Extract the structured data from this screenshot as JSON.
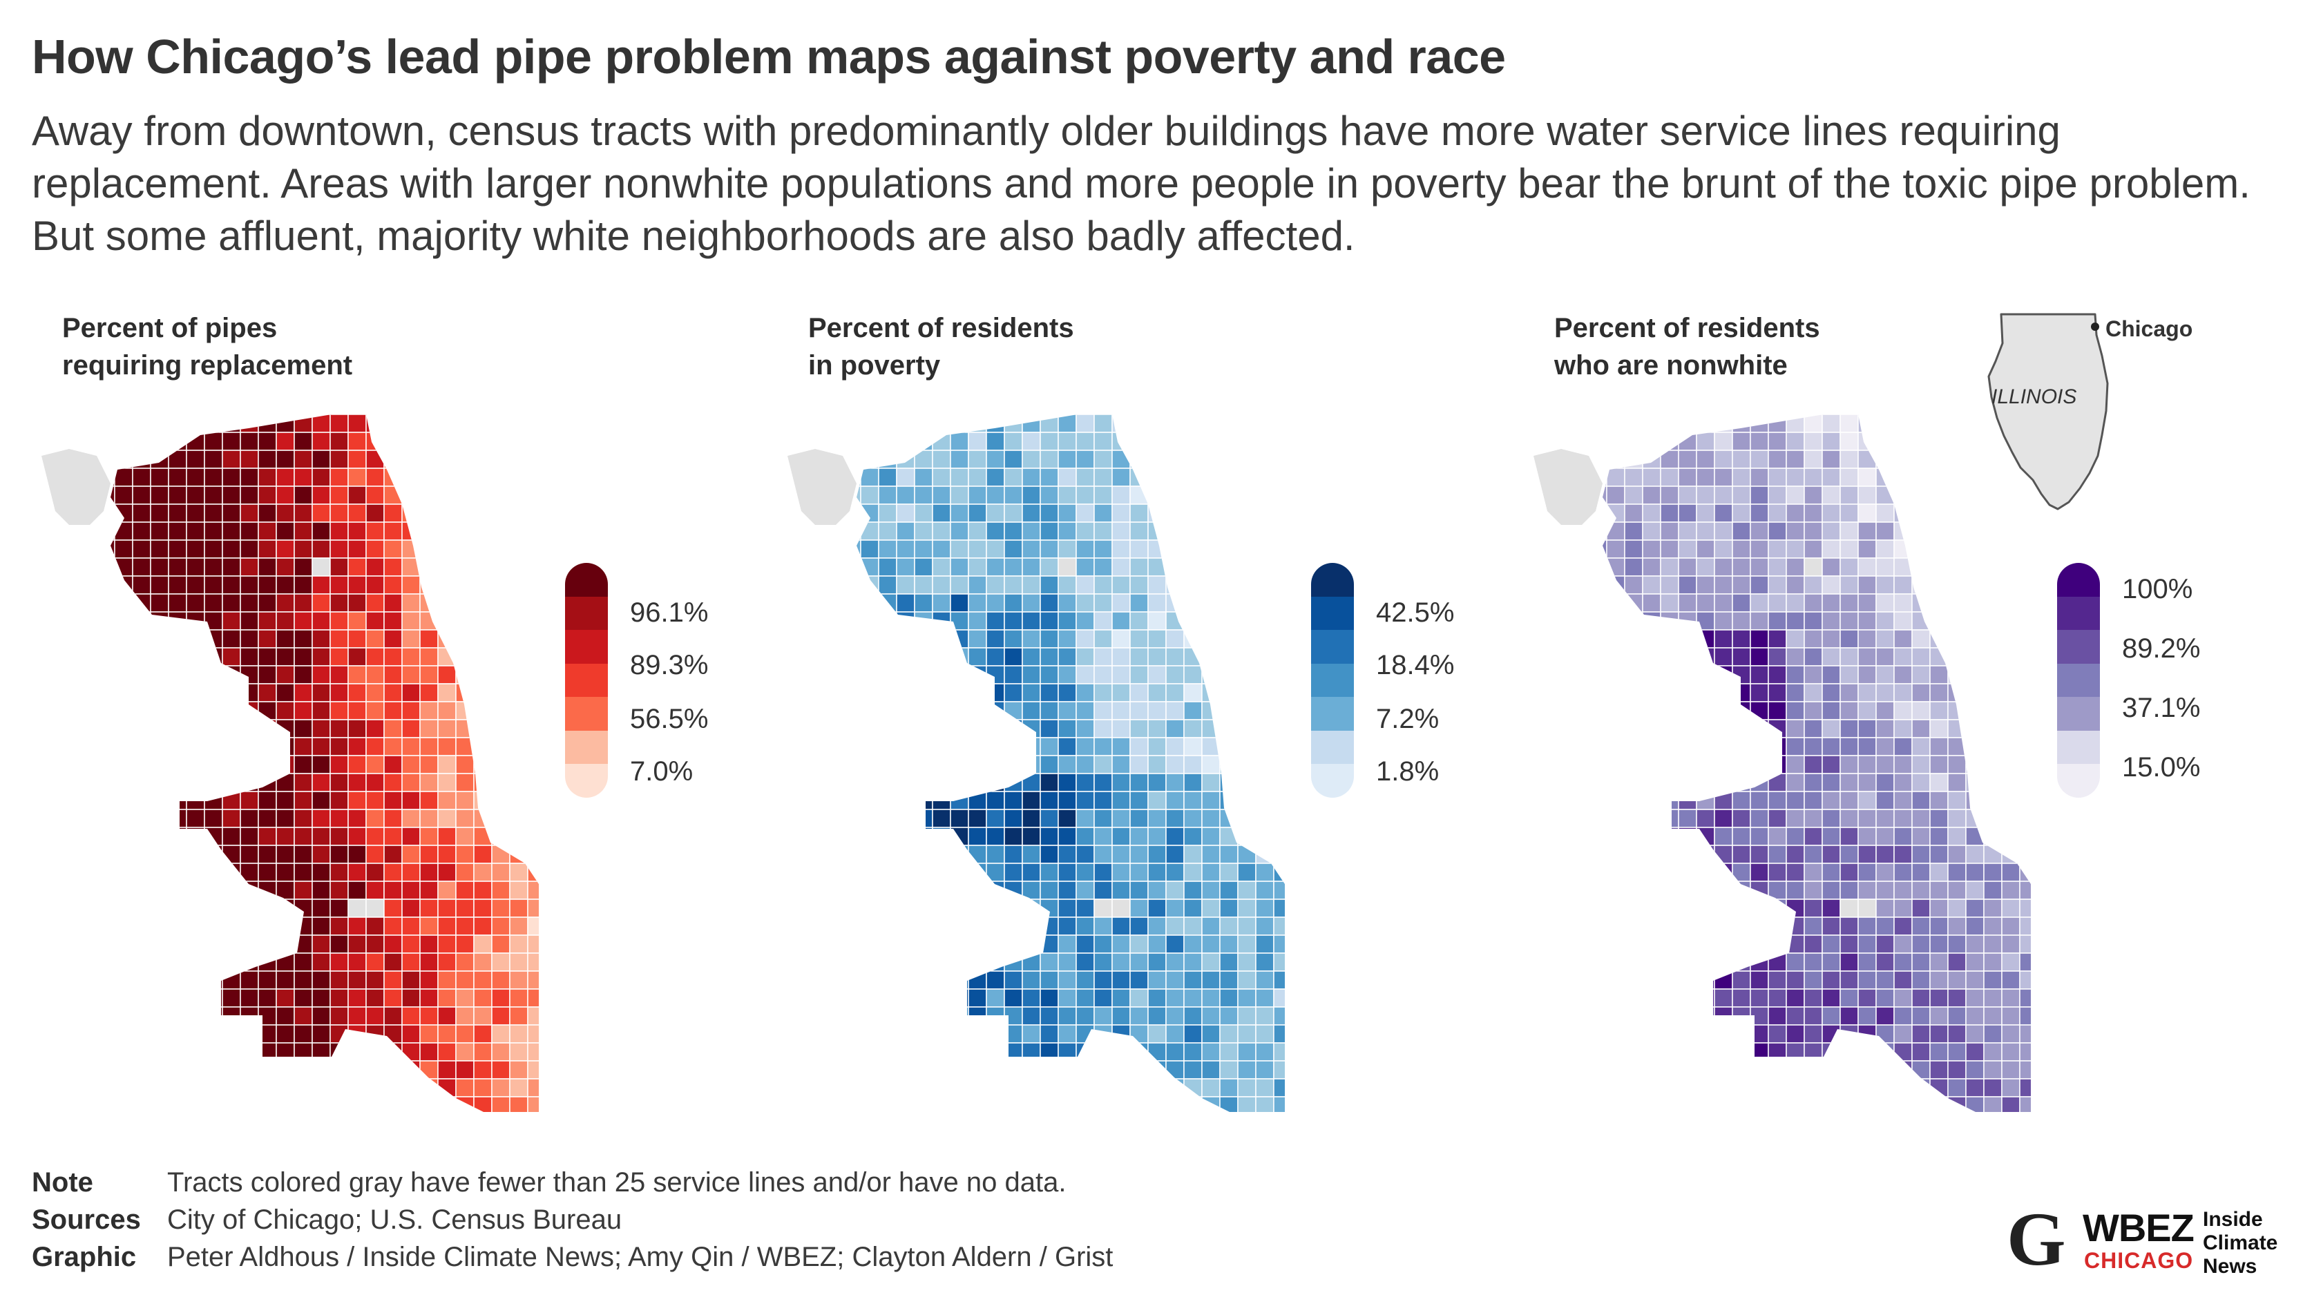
{
  "header": {
    "title": "How Chicago’s lead pipe problem maps against poverty and race",
    "subtitle": "Away from downtown, census tracts with predominantly older buildings have more water service lines requiring replacement. Areas with larger nonwhite populations and more people in poverty bear the brunt of the toxic pipe problem. But some affluent, majority white neighborhoods are also badly affected."
  },
  "panels": [
    {
      "label_line1": "Percent of pipes",
      "label_line2": "requiring replacement",
      "palette": [
        "#67000d",
        "#a50f15",
        "#cb181d",
        "#ef3b2c",
        "#fb6a4a",
        "#fc9272",
        "#fcbba1",
        "#fee0d2",
        "#fff5f0"
      ],
      "ticks": [
        "96.1%",
        "89.3%",
        "56.5%",
        "7.0%"
      ]
    },
    {
      "label_line1": "Percent of residents",
      "label_line2": "in poverty",
      "palette": [
        "#08306b",
        "#08519c",
        "#2171b5",
        "#4292c6",
        "#6baed6",
        "#9ecae1",
        "#c6dbef",
        "#deebf7",
        "#f7fbff"
      ],
      "ticks": [
        "42.5%",
        "18.4%",
        "7.2%",
        "1.8%"
      ]
    },
    {
      "label_line1": "Percent of residents",
      "label_line2": "who are nonwhite",
      "palette": [
        "#3f007d",
        "#54278f",
        "#6a51a3",
        "#807dba",
        "#9e9ac8",
        "#bcbddc",
        "#dadaeb",
        "#efedf5",
        "#fcfbfd"
      ],
      "ticks": [
        "100%",
        "89.2%",
        "37.1%",
        "15.0%"
      ]
    }
  ],
  "inset": {
    "city_label": "Chicago",
    "state_label": "ILLINOIS"
  },
  "notes": [
    {
      "key": "Note",
      "value": "Tracts colored gray have fewer than 25 service lines and/or have no data."
    },
    {
      "key": "Sources",
      "value": "City of Chicago; U.S. Census Bureau"
    },
    {
      "key": "Graphic",
      "value": "Peter Aldhous / Inside Climate News; Amy Qin / WBEZ; Clayton Aldern / Grist"
    }
  ],
  "logos": {
    "grist": "G",
    "wbez": "WBEZ",
    "wbez_sub": "CHICAGO",
    "icn_line1": "Inside",
    "icn_line2": "Climate",
    "icn_line3": "News"
  },
  "colors": {
    "no_data_gray": "#e1e1e1",
    "tract_border": "#ffffff"
  }
}
